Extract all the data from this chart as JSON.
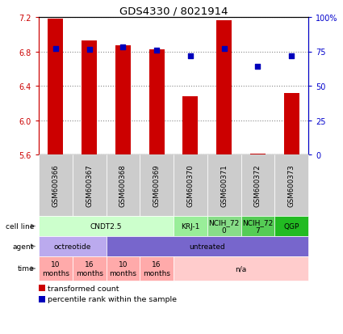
{
  "title": "GDS4330 / 8021914",
  "samples": [
    "GSM600366",
    "GSM600367",
    "GSM600368",
    "GSM600369",
    "GSM600370",
    "GSM600371",
    "GSM600372",
    "GSM600373"
  ],
  "bar_values": [
    7.18,
    6.93,
    6.87,
    6.82,
    6.28,
    7.16,
    5.61,
    6.32
  ],
  "dot_values": [
    6.83,
    6.82,
    6.85,
    6.81,
    6.75,
    6.83,
    6.63,
    6.75
  ],
  "ylim_left": [
    5.6,
    7.2
  ],
  "yticks_left": [
    5.6,
    6.0,
    6.4,
    6.8,
    7.2
  ],
  "ylim_right": [
    0,
    100
  ],
  "yticks_right": [
    0,
    25,
    50,
    75,
    100
  ],
  "ytick_labels_right": [
    "0",
    "25",
    "50",
    "75",
    "100%"
  ],
  "bar_color": "#cc0000",
  "dot_color": "#0000bb",
  "bar_bottom": 5.6,
  "cell_line_groups": [
    {
      "label": "CNDT2.5",
      "start": 0,
      "end": 3,
      "color": "#ccffcc"
    },
    {
      "label": "KRJ-1",
      "start": 4,
      "end": 4,
      "color": "#99ee99"
    },
    {
      "label": "NCIH_72\n0",
      "start": 5,
      "end": 5,
      "color": "#88dd88"
    },
    {
      "label": "NCIH_72\n7",
      "start": 6,
      "end": 6,
      "color": "#55cc55"
    },
    {
      "label": "QGP",
      "start": 7,
      "end": 7,
      "color": "#22bb22"
    }
  ],
  "agent_groups": [
    {
      "label": "octreotide",
      "start": 0,
      "end": 1,
      "color": "#bbaaee"
    },
    {
      "label": "untreated",
      "start": 2,
      "end": 7,
      "color": "#7766cc"
    }
  ],
  "time_groups": [
    {
      "label": "10\nmonths",
      "start": 0,
      "end": 0,
      "color": "#ffaaaa"
    },
    {
      "label": "16\nmonths",
      "start": 1,
      "end": 1,
      "color": "#ffaaaa"
    },
    {
      "label": "10\nmonths",
      "start": 2,
      "end": 2,
      "color": "#ffaaaa"
    },
    {
      "label": "16\nmonths",
      "start": 3,
      "end": 3,
      "color": "#ffaaaa"
    },
    {
      "label": "n/a",
      "start": 4,
      "end": 7,
      "color": "#ffcccc"
    }
  ],
  "row_labels": [
    "cell line",
    "agent",
    "time"
  ],
  "left_axis_color": "#cc0000",
  "right_axis_color": "#0000cc",
  "grid_color": "#888888",
  "sample_box_color": "#cccccc",
  "legend_red_label": "transformed count",
  "legend_blue_label": "percentile rank within the sample"
}
